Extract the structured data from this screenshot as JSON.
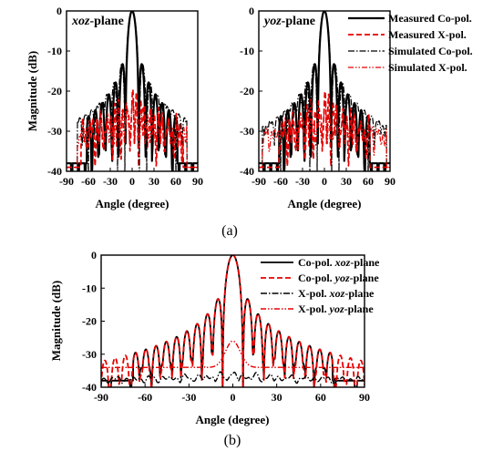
{
  "captions": {
    "a": "(a)",
    "b": "(b)"
  },
  "chart_data": [
    {
      "id": "a1",
      "type": "line",
      "annotation_prefix": "xoz",
      "annotation_suffix": "-plane",
      "xlabel": "Angle (degree)",
      "ylabel": "Magnitude (dB)",
      "xlim": [
        -90,
        90
      ],
      "ylim": [
        -40,
        0
      ],
      "xticks": [
        -90,
        -60,
        -30,
        0,
        30,
        60,
        90
      ],
      "yticks": [
        0,
        -10,
        -20,
        -30,
        -40
      ],
      "series": [
        {
          "key": "s1",
          "color": "#000000",
          "dash": "",
          "width": 2.2,
          "model": {
            "bw": 4.6,
            "floor": -26,
            "decay": 0.26,
            "spacing": 7.6,
            "nlim": 62
          }
        },
        {
          "key": "s2",
          "color": "#e60000",
          "dash": "6,3",
          "width": 1.7,
          "model": {
            "peak": -21.5,
            "floor": -34,
            "spacing": 6,
            "nlim": 70,
            "jitter": 5
          }
        },
        {
          "key": "s3",
          "color": "#000000",
          "dash": "7,2,1.5,2",
          "width": 1.2,
          "model": {
            "bw": 5,
            "floor": -20,
            "decay": 0.12,
            "spacing": 8,
            "nlim": 75
          }
        },
        {
          "key": "s4",
          "color": "#e60000",
          "dash": "6,2,1.5,2,1.5,2",
          "width": 1.2,
          "model": {
            "peak": -23,
            "floor": -33,
            "spacing": 7,
            "nlim": 75,
            "jitter": 3
          }
        }
      ]
    },
    {
      "id": "a2",
      "type": "line",
      "annotation_prefix": "yoz",
      "annotation_suffix": "-plane",
      "xlabel": "Angle (degree)",
      "ylabel": "",
      "xlim": [
        -90,
        90
      ],
      "ylim": [
        -40,
        0
      ],
      "xticks": [
        -90,
        -60,
        -30,
        0,
        30,
        60,
        90
      ],
      "yticks": [
        0,
        -10,
        -20,
        -30,
        -40
      ],
      "series": [
        {
          "key": "s1",
          "name": "Measured Co-pol.",
          "color": "#000000",
          "dash": "",
          "width": 2.2,
          "model": {
            "bw": 4.6,
            "floor": -26,
            "decay": 0.26,
            "spacing": 7.6,
            "nlim": 62
          }
        },
        {
          "key": "s2",
          "name": "Measured X-pol.",
          "color": "#e60000",
          "dash": "6,3",
          "width": 1.7,
          "model": {
            "peak": -22,
            "floor": -34,
            "spacing": 6,
            "nlim": 62,
            "jitter": 5
          }
        },
        {
          "key": "s3",
          "name": "Simulated Co-pol.",
          "color": "#000000",
          "dash": "7,2,1.5,2",
          "width": 1.2,
          "model": {
            "bw": 5,
            "floor": -21,
            "decay": 0.12,
            "spacing": 8,
            "nlim": 85
          }
        },
        {
          "key": "s4",
          "name": "Simulated X-pol.",
          "color": "#e60000",
          "dash": "6,2,1.5,2,1.5,2",
          "width": 1.2,
          "model": {
            "peak": -24,
            "floor": -33,
            "spacing": 8,
            "nlim": 85,
            "jitter": 3
          }
        }
      ]
    },
    {
      "id": "b",
      "type": "line",
      "xlabel": "Angle (degree)",
      "ylabel": "Magnitude (dB)",
      "xlim": [
        -90,
        90
      ],
      "ylim": [
        -40,
        0
      ],
      "xticks": [
        -90,
        -60,
        -30,
        0,
        30,
        60,
        90
      ],
      "yticks": [
        0,
        -10,
        -20,
        -30,
        -40
      ],
      "series": [
        {
          "key": "s1",
          "name_prefix": "Co-pol.",
          "name_italic": "xoz",
          "name_suffix": "-plane",
          "color": "#000000",
          "dash": "",
          "width": 1.8,
          "model": {
            "bw": 3.5,
            "floor": -30.5,
            "decay": 0.09,
            "spacing": 4.8,
            "nlim": 68
          }
        },
        {
          "key": "s2",
          "name_prefix": "Co-pol.",
          "name_italic": "yoz",
          "name_suffix": "-plane",
          "color": "#e60000",
          "dash": "6,3",
          "width": 1.8,
          "model": {
            "bw": 3.5,
            "floor": -30,
            "decay": 0.13,
            "spacing": 4.8,
            "nlim": 90
          }
        },
        {
          "key": "s3",
          "name_prefix": "X-pol.",
          "name_italic": "xoz",
          "name_suffix": "-plane",
          "color": "#000000",
          "dash": "7,2,1.5,2",
          "width": 1.4,
          "model": {
            "peak": -36,
            "floor": -38,
            "spacing": 8,
            "nlim": 90,
            "jitter": 1,
            "center": -36,
            "cw": 5
          }
        },
        {
          "key": "s4",
          "name_prefix": "X-pol.",
          "name_italic": "yoz",
          "name_suffix": "-plane",
          "color": "#e60000",
          "dash": "6,2,1.5,2,1.5,2",
          "width": 1.4,
          "model": {
            "peak": -34,
            "floor": -38,
            "spacing": 10,
            "nlim": 90,
            "jitter": 2,
            "center": -26,
            "cw": 5
          }
        }
      ]
    }
  ]
}
